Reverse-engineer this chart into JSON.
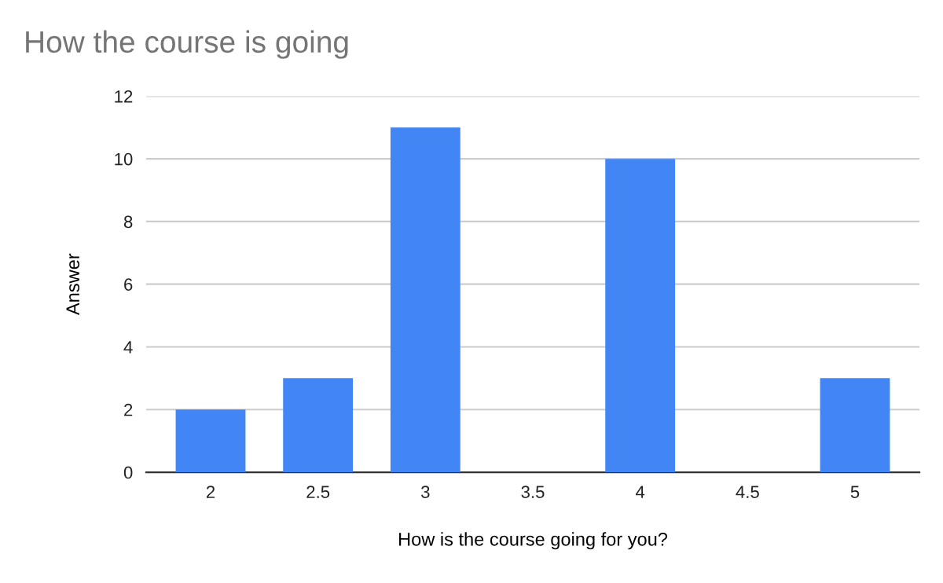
{
  "chart_data": {
    "type": "bar",
    "title": "How the course is going",
    "xlabel": "How is the course going for you?",
    "ylabel": "Answer",
    "categories": [
      "2",
      "2.5",
      "3",
      "3.5",
      "4",
      "4.5",
      "5"
    ],
    "values": [
      2,
      3,
      11,
      0,
      10,
      0,
      3
    ],
    "color": "#4285f4",
    "ylim": [
      0,
      12
    ],
    "yticks": [
      0,
      2,
      4,
      6,
      8,
      10,
      12
    ],
    "grid": "y",
    "legend": false
  }
}
